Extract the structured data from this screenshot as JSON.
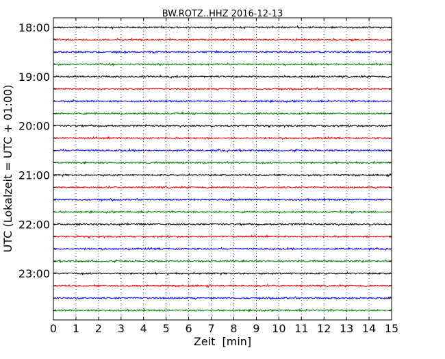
{
  "chart_data": {
    "type": "line",
    "title": "BW.ROTZ..HHZ 2016-12-13",
    "xlabel": "Zeit  [min]",
    "ylabel": "UTC (Lokalzeit = UTC + 01:00)",
    "xlim": [
      0,
      15
    ],
    "x_ticks": [
      "0",
      "1",
      "2",
      "3",
      "4",
      "5",
      "6",
      "7",
      "8",
      "9",
      "10",
      "11",
      "12",
      "13",
      "14",
      "15"
    ],
    "y_tick_labels": [
      "18:00",
      "19:00",
      "20:00",
      "21:00",
      "22:00",
      "23:00"
    ],
    "grid": "vertical dotted",
    "trace_colors": [
      "#000000",
      "#ff0000",
      "#0000ff",
      "#008000"
    ],
    "traces": [
      {
        "start": "18:00"
      },
      {
        "start": "18:15"
      },
      {
        "start": "18:30"
      },
      {
        "start": "18:45"
      },
      {
        "start": "19:00"
      },
      {
        "start": "19:15"
      },
      {
        "start": "19:30"
      },
      {
        "start": "19:45"
      },
      {
        "start": "20:00"
      },
      {
        "start": "20:15"
      },
      {
        "start": "20:30"
      },
      {
        "start": "20:45"
      },
      {
        "start": "21:00"
      },
      {
        "start": "21:15"
      },
      {
        "start": "21:30"
      },
      {
        "start": "21:45"
      },
      {
        "start": "22:00"
      },
      {
        "start": "22:15"
      },
      {
        "start": "22:30"
      },
      {
        "start": "22:45"
      },
      {
        "start": "23:00"
      },
      {
        "start": "23:15"
      },
      {
        "start": "23:30"
      },
      {
        "start": "23:45"
      }
    ]
  }
}
